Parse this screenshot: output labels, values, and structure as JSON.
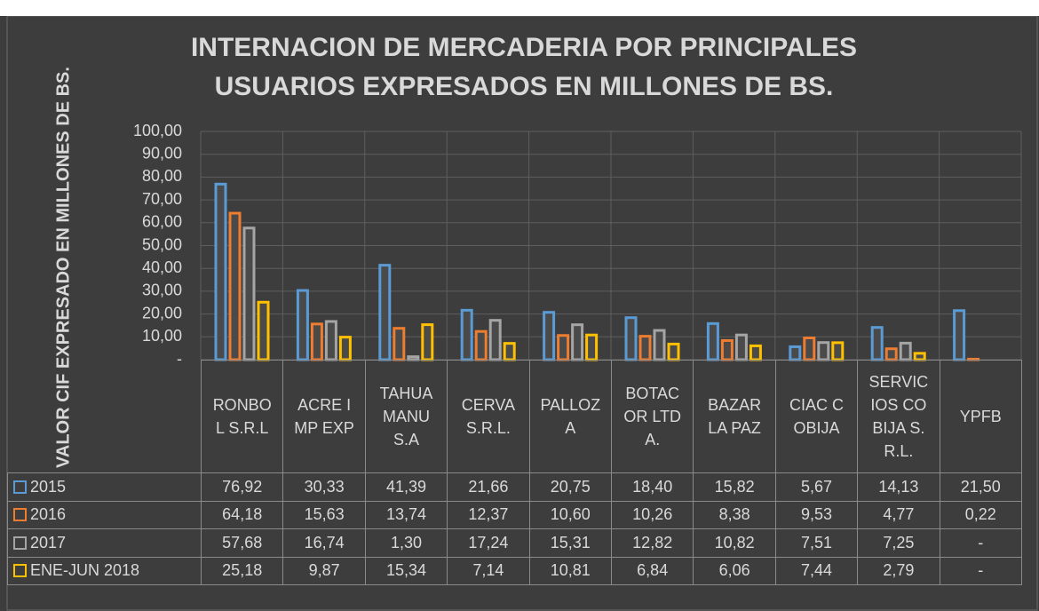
{
  "chart_data": {
    "type": "bar",
    "title": "INTERNACION DE MERCADERIA POR PRINCIPALES USUARIOS EXPRESADOS EN MILLONES DE BS.",
    "y_label": "VALOR CIF EXPRESADO EN MILLONES DE BS.",
    "categories": [
      "RONBOL S.R.L",
      "ACRE IMP EXP",
      "TAHUAMANU S.A",
      "CERVA S.R.L.",
      "PALLOZA",
      "BOTACOR LTDA.",
      "BAZAR LA PAZ",
      "CIAC COBIJA",
      "SERVICIOS COBIJA S.R.L.",
      "YPFB"
    ],
    "series": [
      {
        "name": "2015",
        "color": "#5b9bd5",
        "values": [
          76.92,
          30.33,
          41.39,
          21.66,
          20.75,
          18.4,
          15.82,
          5.67,
          14.13,
          21.5
        ],
        "value_labels": [
          "76,92",
          "30,33",
          "41,39",
          "21,66",
          "20,75",
          "18,40",
          "15,82",
          "5,67",
          "14,13",
          "21,50"
        ]
      },
      {
        "name": "2016",
        "color": "#ed7d31",
        "values": [
          64.18,
          15.63,
          13.74,
          12.37,
          10.6,
          10.26,
          8.38,
          9.53,
          4.77,
          0.22
        ],
        "value_labels": [
          "64,18",
          "15,63",
          "13,74",
          "12,37",
          "10,60",
          "10,26",
          "8,38",
          "9,53",
          "4,77",
          "0,22"
        ]
      },
      {
        "name": "2017",
        "color": "#a5a5a5",
        "values": [
          57.68,
          16.74,
          1.3,
          17.24,
          15.31,
          12.82,
          10.82,
          7.51,
          7.25,
          null
        ],
        "value_labels": [
          "57,68",
          "16,74",
          "1,30",
          "17,24",
          "15,31",
          "12,82",
          "10,82",
          "7,51",
          "7,25",
          "-"
        ]
      },
      {
        "name": "ENE-JUN 2018",
        "color": "#ffc000",
        "values": [
          25.18,
          9.87,
          15.34,
          7.14,
          10.81,
          6.84,
          6.06,
          7.44,
          2.79,
          null
        ],
        "value_labels": [
          "25,18",
          "9,87",
          "15,34",
          "7,14",
          "10,81",
          "6,84",
          "6,06",
          "7,44",
          "2,79",
          "-"
        ]
      }
    ],
    "ylim": [
      0,
      100
    ],
    "yticks": [
      {
        "value": 0,
        "label": "-"
      },
      {
        "value": 10,
        "label": "10,00"
      },
      {
        "value": 20,
        "label": "20,00"
      },
      {
        "value": 30,
        "label": "30,00"
      },
      {
        "value": 40,
        "label": "40,00"
      },
      {
        "value": 50,
        "label": "50,00"
      },
      {
        "value": 60,
        "label": "60,00"
      },
      {
        "value": 70,
        "label": "70,00"
      },
      {
        "value": 80,
        "label": "80,00"
      },
      {
        "value": 90,
        "label": "90,00"
      },
      {
        "value": 100,
        "label": "100,00"
      }
    ],
    "grid": true
  }
}
